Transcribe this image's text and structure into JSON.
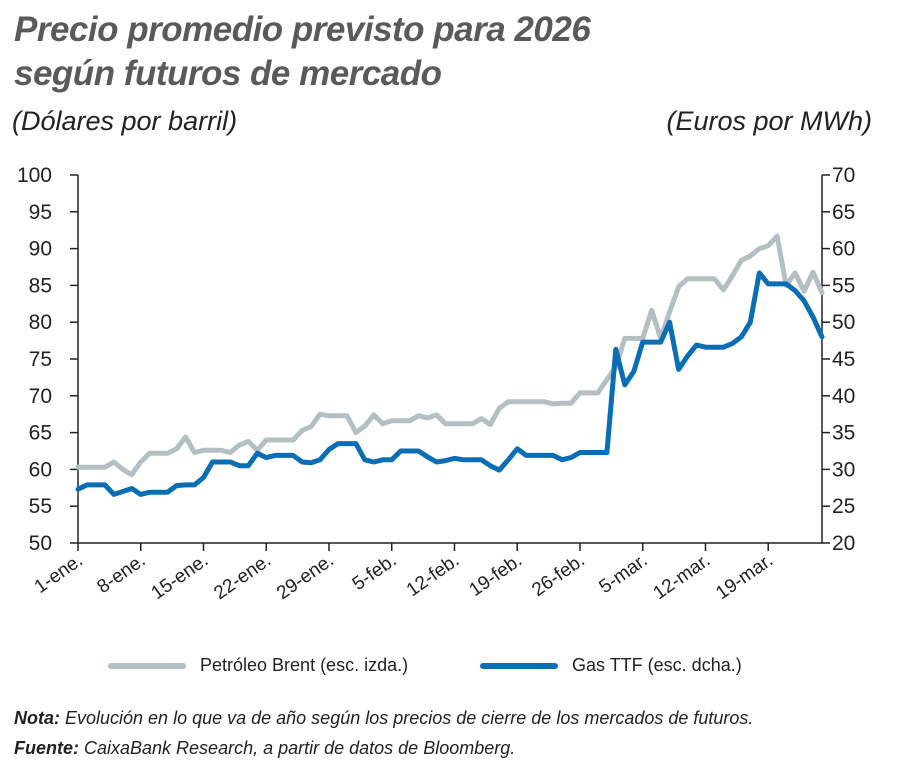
{
  "title_line1": "Precio promedio previsto para 2026",
  "title_line2": "según futuros de mercado",
  "left_unit": "(Dólares por barril)",
  "right_unit": "(Euros por MWh)",
  "colors": {
    "brent": "#b4bfc4",
    "ttf": "#0a6eb4",
    "axis": "#222222"
  },
  "chart_data": {
    "type": "line",
    "title": "Precio promedio previsto para 2026 según futuros de mercado",
    "ylabel_left": "(Dólares por barril)",
    "ylabel_right": "(Euros por MWh)",
    "ylim_left": [
      50,
      100
    ],
    "ylim_right": [
      20,
      70
    ],
    "yticks_left": [
      "50",
      "55",
      "60",
      "65",
      "70",
      "75",
      "80",
      "85",
      "90",
      "95",
      "100"
    ],
    "yticks_right": [
      "20",
      "25",
      "30",
      "35",
      "40",
      "45",
      "50",
      "55",
      "60",
      "65",
      "70"
    ],
    "x_categories": [
      "1-ene.",
      "8-ene.",
      "15-ene.",
      "22-ene.",
      "29-ene.",
      "5-feb.",
      "12-feb.",
      "19-feb.",
      "26-feb.",
      "5-mar.",
      "12-mar.",
      "19-mar."
    ],
    "grid": false,
    "legend": "bottom",
    "series": [
      {
        "name": "Petróleo Brent (esc. izda.)",
        "axis": "left",
        "x": [
          0,
          1,
          2,
          3,
          4,
          5,
          6,
          7,
          8,
          9,
          10,
          11,
          12,
          13,
          14,
          15,
          16,
          17,
          18,
          19,
          20,
          21,
          22,
          23,
          24,
          25,
          26,
          27,
          28,
          29,
          30,
          31,
          32,
          33,
          34,
          35,
          36,
          37,
          38,
          39,
          40,
          41,
          42,
          43,
          44,
          45,
          46,
          47,
          48,
          49,
          50,
          51,
          52,
          53,
          54,
          55,
          56,
          57,
          58,
          59,
          60,
          61,
          62,
          63,
          64,
          65,
          66,
          67,
          68,
          69,
          70,
          71,
          72,
          73,
          74,
          75,
          76,
          77,
          78,
          79,
          80,
          81,
          82,
          83
        ],
        "values": [
          60.3,
          60.3,
          60.3,
          60.3,
          61.0,
          60.0,
          59.3,
          61.0,
          62.2,
          62.2,
          62.2,
          62.8,
          64.4,
          62.3,
          62.6,
          62.6,
          62.6,
          62.3,
          63.3,
          63.8,
          62.6,
          64.0,
          64.0,
          64.0,
          64.0,
          65.3,
          65.8,
          67.5,
          67.3,
          67.3,
          67.3,
          65.0,
          65.9,
          67.4,
          66.2,
          66.6,
          66.6,
          66.6,
          67.3,
          67.0,
          67.4,
          66.2,
          66.2,
          66.2,
          66.2,
          66.9,
          66.1,
          68.3,
          69.2,
          69.2,
          69.2,
          69.2,
          69.2,
          68.9,
          69.0,
          69.0,
          70.4,
          70.4,
          70.4,
          72.2,
          73.9,
          77.8,
          77.8,
          77.8,
          81.6,
          77.8,
          81.4,
          84.8,
          85.9,
          85.9,
          85.9,
          85.9,
          84.4,
          86.3,
          88.4,
          89.0,
          90.0,
          90.4,
          91.7,
          85.0,
          86.7,
          84.2,
          86.8,
          84.0
        ]
      },
      {
        "name": "Gas TTF (esc. dcha.)",
        "axis": "right",
        "x": [
          0,
          1,
          2,
          3,
          4,
          5,
          6,
          7,
          8,
          9,
          10,
          11,
          12,
          13,
          14,
          15,
          16,
          17,
          18,
          19,
          20,
          21,
          22,
          23,
          24,
          25,
          26,
          27,
          28,
          29,
          30,
          31,
          32,
          33,
          34,
          35,
          36,
          37,
          38,
          39,
          40,
          41,
          42,
          43,
          44,
          45,
          46,
          47,
          48,
          49,
          50,
          51,
          52,
          53,
          54,
          55,
          56,
          57,
          58,
          59,
          60,
          61,
          62,
          63,
          64,
          65,
          66,
          67,
          68,
          69,
          70,
          71,
          72,
          73,
          74,
          75,
          76,
          77,
          78,
          79,
          80,
          81,
          82,
          83
        ],
        "values": [
          27.3,
          27.9,
          27.9,
          27.9,
          26.6,
          27.0,
          27.4,
          26.6,
          26.9,
          26.9,
          26.9,
          27.8,
          27.9,
          27.9,
          28.9,
          31.0,
          31.0,
          31.0,
          30.5,
          30.5,
          32.2,
          31.6,
          31.9,
          31.9,
          31.9,
          31.0,
          30.9,
          31.3,
          32.7,
          33.5,
          33.5,
          33.5,
          31.3,
          31.0,
          31.3,
          31.3,
          32.5,
          32.5,
          32.5,
          31.7,
          31.0,
          31.2,
          31.5,
          31.3,
          31.3,
          31.3,
          30.5,
          29.9,
          31.3,
          32.8,
          31.9,
          31.9,
          31.9,
          31.9,
          31.3,
          31.6,
          32.3,
          32.3,
          32.3,
          32.3,
          46.3,
          41.5,
          43.3,
          47.3,
          47.3,
          47.3,
          50.0,
          43.6,
          45.4,
          46.9,
          46.6,
          46.6,
          46.6,
          47.1,
          48.0,
          50.0,
          56.7,
          55.2,
          55.2,
          55.2,
          54.3,
          52.9,
          50.7,
          48.0
        ]
      }
    ]
  },
  "legend": {
    "brent": "Petróleo Brent (esc. izda.)",
    "ttf": "Gas TTF (esc. dcha.)"
  },
  "note": {
    "label": "Nota:",
    "text": " Evolución en lo que va de año según los precios de cierre de los mercados de futuros."
  },
  "source": {
    "label": "Fuente:",
    "text": " CaixaBank Research, a partir de datos de Bloomberg."
  }
}
